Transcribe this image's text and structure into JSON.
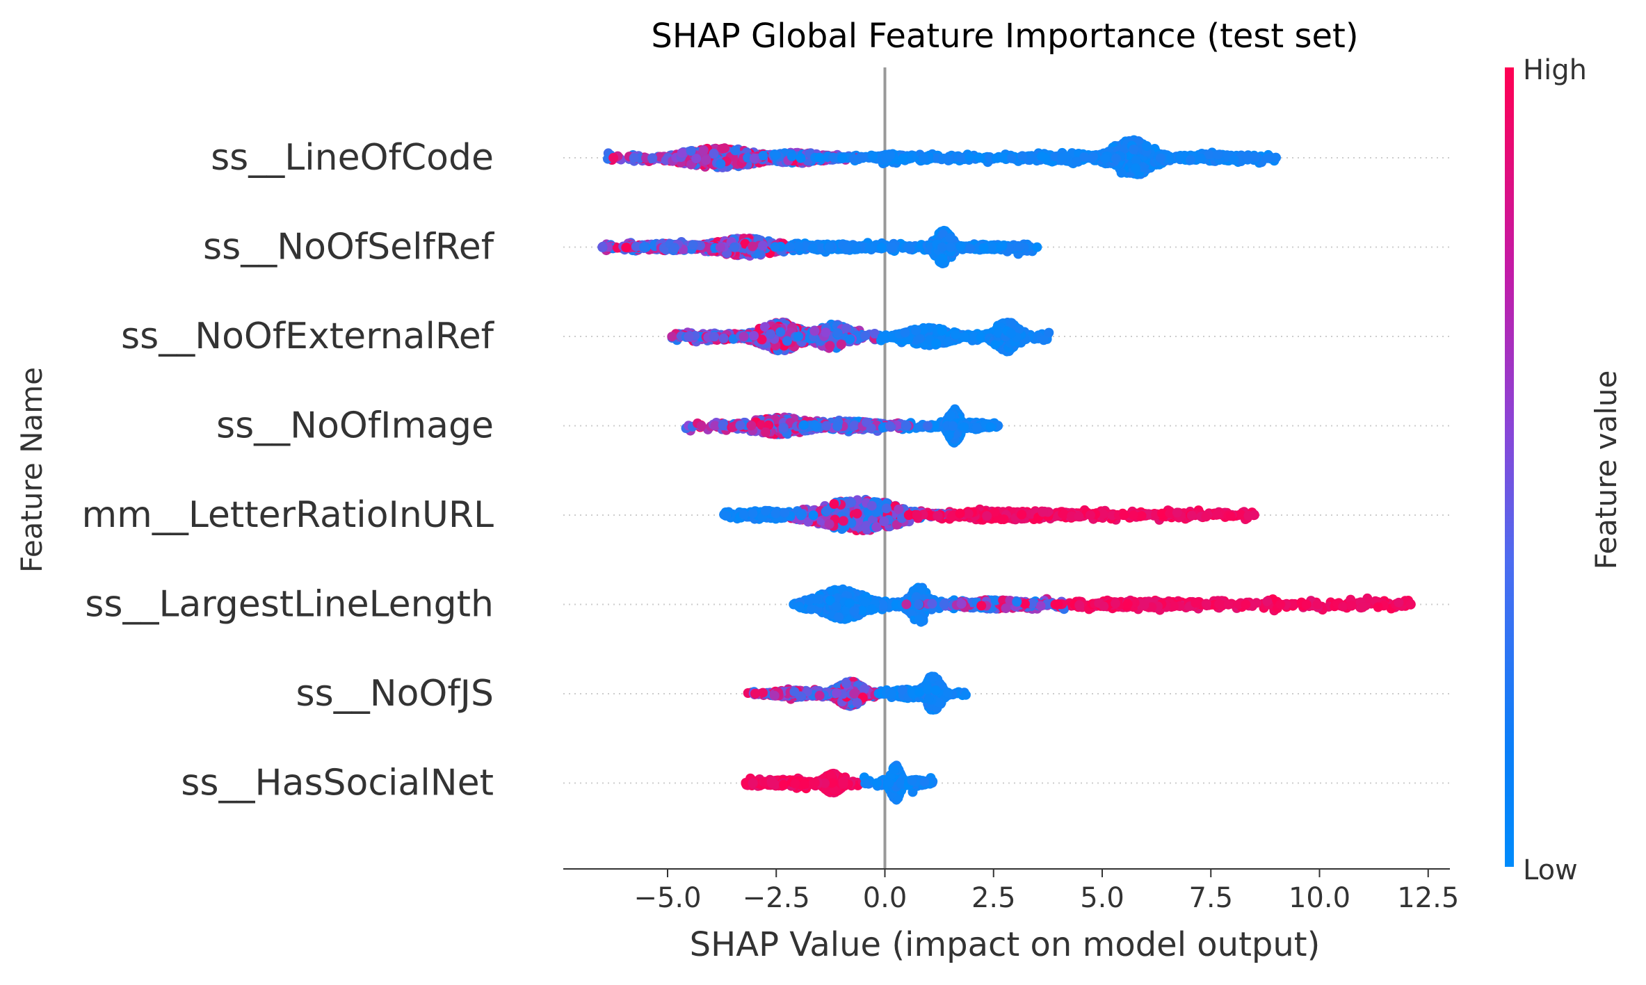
{
  "chart_data": {
    "type": "scatter",
    "subtype": "beeswarm",
    "title": "SHAP Global Feature Importance (test set)",
    "xlabel": "SHAP Value (impact on model output)",
    "ylabel": "Feature Name",
    "xlim": [
      -7.4,
      13.0
    ],
    "x_ticks": [
      -5.0,
      -2.5,
      0.0,
      2.5,
      5.0,
      7.5,
      10.0,
      12.5
    ],
    "x_tick_labels": [
      "−5.0",
      "−2.5",
      "0.0",
      "2.5",
      "5.0",
      "7.5",
      "10.0",
      "12.5"
    ],
    "grid": false,
    "colorbar": {
      "label": "Feature value",
      "high_label": "High",
      "low_label": "Low",
      "high_color": "#ff0052",
      "low_color": "#008bfb"
    },
    "features": [
      {
        "name": "ss__LineOfCode",
        "min": -6.4,
        "max": 9.0,
        "clusters": [
          {
            "center": -3.8,
            "spread": 1.6,
            "height": 0.22,
            "weight": 3,
            "color": "mixed_high"
          },
          {
            "center": -2.0,
            "spread": 1.2,
            "height": 0.12,
            "weight": 2,
            "color": "mixed"
          },
          {
            "center": 0.5,
            "spread": 2.5,
            "height": 0.06,
            "weight": 1,
            "color": "low"
          },
          {
            "center": 5.7,
            "spread": 0.9,
            "height": 0.4,
            "weight": 3,
            "color": "low"
          },
          {
            "center": 4.2,
            "spread": 1.5,
            "height": 0.12,
            "weight": 1,
            "color": "low"
          },
          {
            "center": 7.5,
            "spread": 1.4,
            "height": 0.08,
            "weight": 1,
            "color": "low"
          }
        ]
      },
      {
        "name": "ss__NoOfSelfRef",
        "min": -6.5,
        "max": 3.5,
        "clusters": [
          {
            "center": -3.2,
            "spread": 1.3,
            "height": 0.2,
            "weight": 3,
            "color": "mixed_high"
          },
          {
            "center": -5.0,
            "spread": 1.3,
            "height": 0.08,
            "weight": 2,
            "color": "mixed"
          },
          {
            "center": -1.2,
            "spread": 1.5,
            "height": 0.07,
            "weight": 1,
            "color": "low"
          },
          {
            "center": 1.35,
            "spread": 0.35,
            "height": 0.38,
            "weight": 2,
            "color": "low"
          },
          {
            "center": 2.4,
            "spread": 1.0,
            "height": 0.06,
            "weight": 1,
            "color": "low"
          }
        ]
      },
      {
        "name": "ss__NoOfExternalRef",
        "min": -4.9,
        "max": 3.8,
        "clusters": [
          {
            "center": -2.4,
            "spread": 0.9,
            "height": 0.32,
            "weight": 3,
            "color": "mixed_high"
          },
          {
            "center": -1.2,
            "spread": 0.7,
            "height": 0.28,
            "weight": 2,
            "color": "mixed_low"
          },
          {
            "center": -3.8,
            "spread": 0.9,
            "height": 0.08,
            "weight": 1,
            "color": "mixed"
          },
          {
            "center": 1.0,
            "spread": 1.0,
            "height": 0.2,
            "weight": 2,
            "color": "low"
          },
          {
            "center": 2.8,
            "spread": 0.5,
            "height": 0.35,
            "weight": 2,
            "color": "low"
          }
        ]
      },
      {
        "name": "ss__NoOfImage",
        "min": -4.6,
        "max": 2.6,
        "clusters": [
          {
            "center": -2.4,
            "spread": 1.2,
            "height": 0.2,
            "weight": 3,
            "color": "mixed_high"
          },
          {
            "center": -0.8,
            "spread": 1.2,
            "height": 0.1,
            "weight": 2,
            "color": "mixed_low"
          },
          {
            "center": 1.6,
            "spread": 0.25,
            "height": 0.38,
            "weight": 2,
            "color": "low"
          },
          {
            "center": 2.1,
            "spread": 0.5,
            "height": 0.08,
            "weight": 1,
            "color": "low"
          }
        ]
      },
      {
        "name": "mm__LetterRatioInURL",
        "min": -3.7,
        "max": 8.5,
        "clusters": [
          {
            "center": -0.6,
            "spread": 1.8,
            "height": 0.35,
            "weight": 4,
            "color": "mixed"
          },
          {
            "center": -2.8,
            "spread": 1.0,
            "height": 0.1,
            "weight": 1,
            "color": "low"
          },
          {
            "center": 3.0,
            "spread": 2.4,
            "height": 0.1,
            "weight": 2,
            "color": "high"
          },
          {
            "center": 6.8,
            "spread": 1.8,
            "height": 0.06,
            "weight": 1,
            "color": "high"
          }
        ]
      },
      {
        "name": "ss__LargestLineLength",
        "min": -2.1,
        "max": 12.1,
        "clusters": [
          {
            "center": -1.0,
            "spread": 1.0,
            "height": 0.34,
            "weight": 4,
            "color": "low"
          },
          {
            "center": 0.8,
            "spread": 0.4,
            "height": 0.4,
            "weight": 2,
            "color": "low"
          },
          {
            "center": 2.5,
            "spread": 1.5,
            "height": 0.1,
            "weight": 2,
            "color": "mixed"
          },
          {
            "center": 6.0,
            "spread": 2.0,
            "height": 0.07,
            "weight": 2,
            "color": "high"
          }
        ],
        "outliers": [
          {
            "x": 8.3,
            "color": "high"
          },
          {
            "x": 9.1,
            "color": "high"
          },
          {
            "x": 9.7,
            "color": "high"
          },
          {
            "x": 9.95,
            "color": "high"
          },
          {
            "x": 12.1,
            "color": "high"
          }
        ]
      },
      {
        "name": "ss__NoOfJS",
        "min": -3.2,
        "max": 1.9,
        "clusters": [
          {
            "center": -0.8,
            "spread": 0.55,
            "height": 0.28,
            "weight": 3,
            "color": "mixed_high"
          },
          {
            "center": -2.0,
            "spread": 1.0,
            "height": 0.08,
            "weight": 2,
            "color": "mixed_high"
          },
          {
            "center": 0.5,
            "spread": 0.6,
            "height": 0.1,
            "weight": 1,
            "color": "low"
          },
          {
            "center": 1.1,
            "spread": 0.35,
            "height": 0.4,
            "weight": 2,
            "color": "low"
          }
        ]
      },
      {
        "name": "ss__HasSocialNet",
        "min": -3.2,
        "max": 1.1,
        "clusters": [
          {
            "center": -1.2,
            "spread": 0.35,
            "height": 0.22,
            "weight": 3,
            "color": "high"
          },
          {
            "center": -2.3,
            "spread": 0.9,
            "height": 0.07,
            "weight": 2,
            "color": "high"
          },
          {
            "center": 0.25,
            "spread": 0.2,
            "height": 0.4,
            "weight": 2,
            "color": "low"
          },
          {
            "center": 0.7,
            "spread": 0.35,
            "height": 0.08,
            "weight": 1,
            "color": "low"
          }
        ]
      }
    ]
  }
}
